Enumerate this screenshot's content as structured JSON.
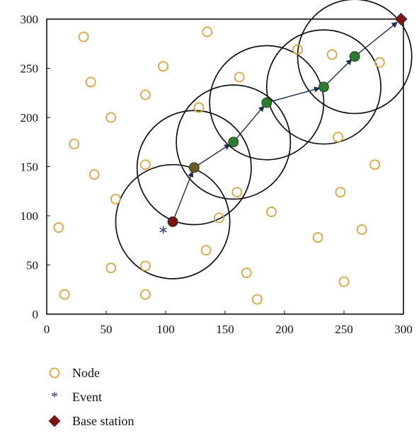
{
  "chart_data": {
    "type": "scatter",
    "title": "",
    "xlabel": "",
    "ylabel": "",
    "xlim": [
      0,
      300
    ],
    "ylim": [
      0,
      300
    ],
    "x_ticks": [
      0,
      50,
      100,
      150,
      200,
      250,
      300
    ],
    "y_ticks": [
      0,
      50,
      100,
      150,
      200,
      250,
      300
    ],
    "grid": false,
    "legend_position": "bottom-left",
    "colors": {
      "node": "#d9a441",
      "event": "#1f3366",
      "base_station": "#7a1616",
      "forwarding_node": "#2c7d2c",
      "route_start_node": "#6b5b1e",
      "range_circle": "#111111",
      "route_arrow": "#1a2a50"
    },
    "legend": [
      {
        "symbol": "node",
        "label": "Node"
      },
      {
        "symbol": "event",
        "label": "Event"
      },
      {
        "symbol": "base_station",
        "label": "Base station"
      }
    ],
    "series": [
      {
        "name": "Node",
        "marker": "open-circle",
        "points": [
          [
            31,
            282
          ],
          [
            135,
            287
          ],
          [
            98,
            252
          ],
          [
            37,
            236
          ],
          [
            83,
            223
          ],
          [
            54,
            200
          ],
          [
            128,
            210
          ],
          [
            23,
            173
          ],
          [
            83,
            152
          ],
          [
            40,
            142
          ],
          [
            58,
            117
          ],
          [
            10,
            88
          ],
          [
            145,
            98
          ],
          [
            160,
            124
          ],
          [
            189,
            104
          ],
          [
            134,
            65
          ],
          [
            54,
            47
          ],
          [
            83,
            49
          ],
          [
            168,
            42
          ],
          [
            15,
            20
          ],
          [
            83,
            20
          ],
          [
            177,
            15
          ],
          [
            162,
            241
          ],
          [
            211,
            269
          ],
          [
            240,
            264
          ],
          [
            280,
            256
          ],
          [
            245,
            180
          ],
          [
            276,
            152
          ],
          [
            247,
            124
          ],
          [
            228,
            78
          ],
          [
            265,
            86
          ],
          [
            250,
            33
          ]
        ]
      },
      {
        "name": "Event",
        "marker": "star",
        "points": [
          [
            98,
            83
          ]
        ]
      },
      {
        "name": "Base station",
        "marker": "diamond",
        "points": [
          [
            298,
            300
          ]
        ]
      },
      {
        "name": "Route",
        "marker": "filled-circle",
        "route_points": [
          [
            106,
            94
          ],
          [
            124,
            149
          ],
          [
            157,
            175
          ],
          [
            185,
            215
          ],
          [
            233,
            231
          ],
          [
            259,
            262
          ],
          [
            298,
            300
          ]
        ]
      }
    ],
    "communication_ranges": {
      "radius": 48,
      "centers": [
        [
          106,
          94
        ],
        [
          124,
          149
        ],
        [
          157,
          175
        ],
        [
          185,
          215
        ],
        [
          233,
          231
        ],
        [
          259,
          262
        ]
      ]
    }
  }
}
